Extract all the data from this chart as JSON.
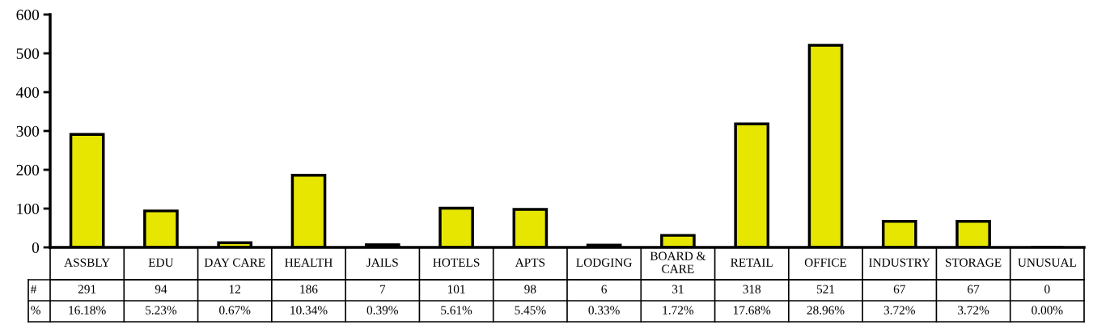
{
  "chart_data": {
    "type": "bar",
    "categories": [
      "ASSBLY",
      "EDU",
      "DAY CARE",
      "HEALTH",
      "JAILS",
      "HOTELS",
      "APTS",
      "LODGING",
      "BOARD &\nCARE",
      "RETAIL",
      "OFFICE",
      "INDUSTRY",
      "STORAGE",
      "UNUSUAL"
    ],
    "values": [
      291,
      94,
      12,
      186,
      7,
      101,
      98,
      6,
      31,
      318,
      521,
      67,
      67,
      0
    ],
    "color": "#e6e600",
    "ylim": [
      0,
      600
    ],
    "yticks": [
      0,
      100,
      200,
      300,
      400,
      500,
      600
    ],
    "grid": false,
    "data_labels": true,
    "annotations": [
      "#",
      "%",
      "16.18%",
      "5.23%",
      "0.67%",
      "10.34%",
      "0.39%",
      "5.61%",
      "5.45%",
      "0.33%",
      "1.72%",
      "17.68%",
      "28.96%",
      "3.72%",
      "3.72%",
      "0.00%"
    ]
  }
}
